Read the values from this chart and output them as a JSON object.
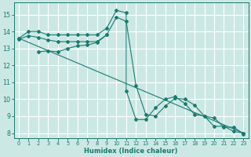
{
  "xlabel": "Humidex (Indice chaleur)",
  "bg_color": "#cce8e5",
  "grid_color": "#b8d8d4",
  "line_color": "#1a7a6e",
  "xlim": [
    -0.5,
    23.5
  ],
  "ylim": [
    7.7,
    15.7
  ],
  "yticks": [
    8,
    9,
    10,
    11,
    12,
    13,
    14,
    15
  ],
  "xticks": [
    0,
    1,
    2,
    3,
    4,
    5,
    6,
    7,
    8,
    9,
    10,
    11,
    12,
    13,
    14,
    15,
    16,
    17,
    18,
    19,
    20,
    21,
    22,
    23
  ],
  "series1_x": [
    0,
    1,
    2,
    3,
    4,
    5,
    6,
    7,
    8,
    9,
    10,
    11,
    11,
    12,
    13,
    14,
    15,
    16,
    17,
    18,
    19,
    20,
    21,
    22,
    23
  ],
  "series1_y": [
    13.6,
    14.0,
    14.0,
    13.8,
    13.8,
    13.8,
    13.8,
    13.8,
    13.8,
    14.2,
    15.25,
    15.1,
    10.5,
    8.8,
    8.8,
    9.5,
    10.0,
    10.15,
    9.75,
    9.1,
    9.0,
    8.4,
    8.4,
    8.1,
    8.0
  ],
  "series2_x": [
    0,
    1,
    2,
    3,
    4,
    5,
    6,
    7,
    8,
    9,
    10,
    11,
    12,
    13,
    14,
    15,
    16,
    17,
    18,
    19,
    20,
    21,
    22,
    23
  ],
  "series2_y": [
    13.55,
    13.75,
    13.65,
    13.5,
    13.4,
    13.4,
    13.4,
    13.4,
    13.4,
    13.8,
    14.85,
    14.6,
    10.8,
    9.1,
    9.0,
    9.6,
    10.05,
    10.0,
    9.65,
    9.0,
    8.9,
    8.35,
    8.35,
    7.95
  ],
  "series3_x": [
    2,
    3,
    4,
    5,
    6,
    7,
    8,
    9
  ],
  "series3_y": [
    12.8,
    12.85,
    12.8,
    13.0,
    13.15,
    13.2,
    13.35,
    13.8
  ],
  "series4_x": [
    0,
    23
  ],
  "series4_y": [
    13.6,
    8.0
  ]
}
